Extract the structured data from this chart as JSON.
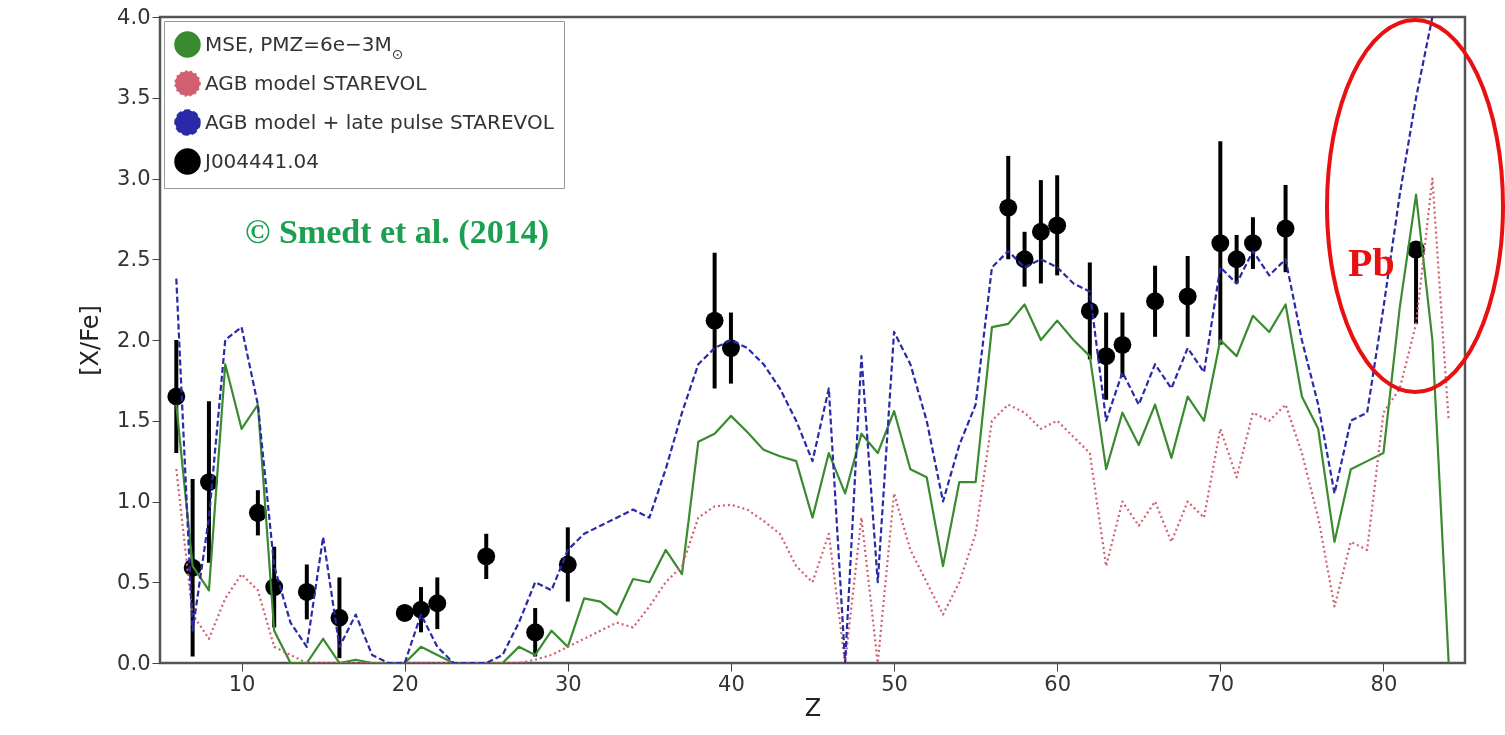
{
  "chart_data": {
    "type": "line",
    "xlabel": "Z",
    "ylabel": "[X/Fe]",
    "x": [
      6,
      7,
      8,
      9,
      10,
      11,
      12,
      13,
      14,
      15,
      16,
      17,
      18,
      19,
      20,
      21,
      22,
      23,
      24,
      25,
      26,
      27,
      28,
      29,
      30,
      31,
      32,
      33,
      34,
      35,
      36,
      37,
      38,
      39,
      40,
      41,
      42,
      43,
      44,
      45,
      46,
      47,
      48,
      49,
      50,
      51,
      52,
      53,
      54,
      55,
      56,
      57,
      58,
      59,
      60,
      61,
      62,
      63,
      64,
      65,
      66,
      67,
      68,
      69,
      70,
      71,
      72,
      73,
      74,
      75,
      76,
      77,
      78,
      79,
      80,
      81,
      82,
      83,
      84
    ],
    "series": [
      {
        "name": "MSE, PMZ=6e−3M$_{⊙}$",
        "color": "#3a8a2f",
        "line_style": "solid",
        "values": [
          1.6,
          0.6,
          0.45,
          1.85,
          1.45,
          1.6,
          0.2,
          0.0,
          0.0,
          0.15,
          0.0,
          0.02,
          0.0,
          0.0,
          0.0,
          0.1,
          0.05,
          0.0,
          0.0,
          0.0,
          0.0,
          0.1,
          0.05,
          0.2,
          0.1,
          0.4,
          0.38,
          0.3,
          0.52,
          0.5,
          0.7,
          0.55,
          1.37,
          1.42,
          1.53,
          1.43,
          1.32,
          1.28,
          1.25,
          0.9,
          1.3,
          1.05,
          1.42,
          1.3,
          1.56,
          1.2,
          1.15,
          0.6,
          1.12,
          1.12,
          2.08,
          2.1,
          2.22,
          2.0,
          2.12,
          2.0,
          1.9,
          1.2,
          1.55,
          1.35,
          1.6,
          1.27,
          1.65,
          1.5,
          2.0,
          1.9,
          2.15,
          2.05,
          2.22,
          1.65,
          1.45,
          0.75,
          1.2,
          1.25,
          1.3,
          2.2,
          2.9,
          2.0,
          0.0
        ]
      },
      {
        "name": "AGB model STAREVOL",
        "color": "#d06070",
        "line_style": "dotted",
        "values": [
          1.2,
          0.3,
          0.15,
          0.4,
          0.55,
          0.45,
          0.1,
          0.05,
          0.0,
          0.0,
          0.0,
          0.0,
          0.0,
          0.0,
          0.0,
          0.0,
          0.0,
          0.0,
          0.0,
          0.0,
          0.0,
          0.0,
          0.02,
          0.05,
          0.1,
          0.15,
          0.2,
          0.25,
          0.22,
          0.35,
          0.5,
          0.6,
          0.9,
          0.97,
          0.98,
          0.95,
          0.88,
          0.8,
          0.6,
          0.5,
          0.8,
          0.0,
          0.9,
          0.0,
          1.05,
          0.7,
          0.5,
          0.3,
          0.5,
          0.8,
          1.5,
          1.6,
          1.55,
          1.45,
          1.5,
          1.4,
          1.3,
          0.6,
          1.0,
          0.85,
          1.0,
          0.75,
          1.0,
          0.9,
          1.45,
          1.15,
          1.55,
          1.5,
          1.6,
          1.3,
          0.9,
          0.35,
          0.75,
          0.7,
          1.55,
          1.7,
          2.1,
          3.0,
          1.5
        ]
      },
      {
        "name": "AGB model + late pulse STAREVOL",
        "color": "#2a2aa8",
        "line_style": "dashed",
        "values": [
          2.38,
          0.2,
          0.9,
          2.0,
          2.08,
          1.6,
          0.6,
          0.25,
          0.1,
          0.78,
          0.1,
          0.3,
          0.05,
          0.0,
          0.0,
          0.3,
          0.1,
          0.0,
          0.0,
          0.0,
          0.05,
          0.25,
          0.5,
          0.45,
          0.7,
          0.8,
          0.85,
          0.9,
          0.95,
          0.9,
          1.2,
          1.55,
          1.85,
          1.95,
          2.0,
          1.95,
          1.85,
          1.7,
          1.5,
          1.25,
          1.7,
          0.0,
          1.9,
          0.5,
          2.05,
          1.85,
          1.5,
          1.0,
          1.35,
          1.6,
          2.45,
          2.55,
          2.45,
          2.5,
          2.45,
          2.35,
          2.3,
          1.5,
          1.8,
          1.6,
          1.85,
          1.7,
          1.95,
          1.8,
          2.45,
          2.35,
          2.55,
          2.4,
          2.5,
          2.0,
          1.6,
          1.05,
          1.5,
          1.55,
          2.2,
          2.9,
          3.5,
          4.0,
          null
        ]
      },
      {
        "name": "J004441.04",
        "color": "#000000",
        "type": "scatter",
        "marker": "circle",
        "x": [
          6,
          7,
          8,
          11,
          12,
          14,
          16,
          20,
          21,
          22,
          25,
          28,
          30,
          39,
          40,
          57,
          58,
          59,
          60,
          62,
          63,
          64,
          66,
          68,
          70,
          71,
          72,
          74,
          82
        ],
        "values": [
          1.65,
          0.59,
          1.12,
          0.93,
          0.47,
          0.44,
          0.28,
          0.31,
          0.33,
          0.37,
          0.66,
          0.19,
          0.61,
          2.12,
          1.95,
          2.82,
          2.5,
          2.67,
          2.71,
          2.18,
          1.9,
          1.97,
          2.24,
          2.27,
          2.6,
          2.5,
          2.6,
          2.69,
          2.56
        ],
        "errors": [
          0.35,
          0.55,
          0.5,
          0.14,
          0.25,
          0.17,
          0.25,
          0.05,
          0.14,
          0.16,
          0.14,
          0.15,
          0.23,
          0.42,
          0.22,
          0.32,
          0.17,
          0.32,
          0.31,
          0.3,
          0.27,
          0.2,
          0.22,
          0.25,
          0.63,
          0.15,
          0.16,
          0.27,
          [
            2.1,
            2.56
          ]
        ]
      }
    ],
    "xlim": [
      5,
      85
    ],
    "xticks": [
      10,
      20,
      30,
      40,
      50,
      60,
      70,
      80
    ],
    "ylim": [
      0,
      4
    ],
    "yticks": [
      {
        "value": 0,
        "label": "0.0"
      },
      0.5,
      {
        "value": 1,
        "label": "1.0"
      },
      1.5,
      {
        "value": 2,
        "label": "2.0"
      },
      2.5,
      {
        "value": 3,
        "label": "3.0"
      },
      3.5,
      {
        "value": 4,
        "label": "4.0"
      }
    ],
    "grid": false,
    "legend": "top left",
    "annotations": [
      "© Smedt et al.  (2014)",
      "Pb"
    ]
  }
}
